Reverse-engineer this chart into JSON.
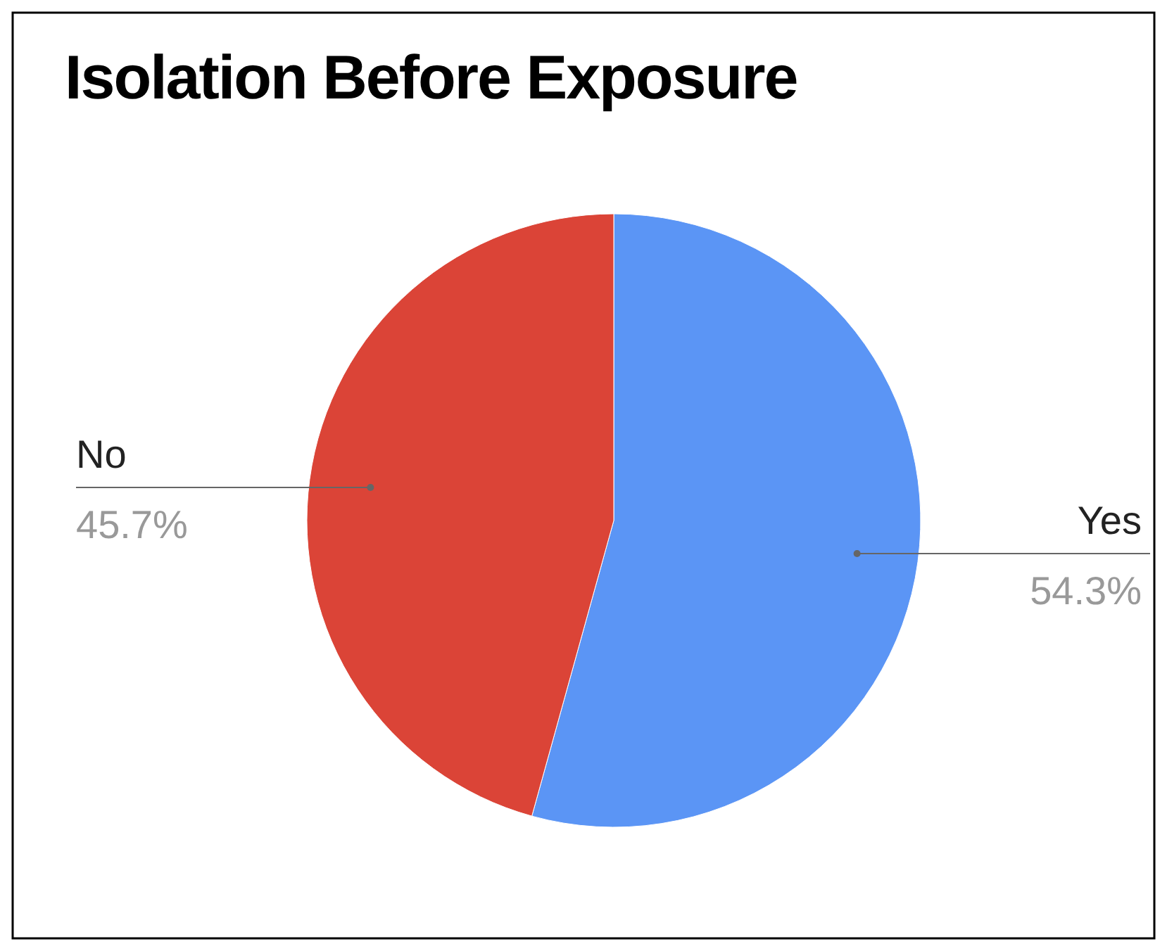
{
  "chart_data": {
    "type": "pie",
    "title": "Isolation Before Exposure",
    "categories": [
      "No",
      "Yes"
    ],
    "values": [
      45.7,
      54.3
    ],
    "value_labels": [
      "45.7%",
      "54.3%"
    ],
    "colors": [
      "#db4437",
      "#5b95f5"
    ]
  }
}
